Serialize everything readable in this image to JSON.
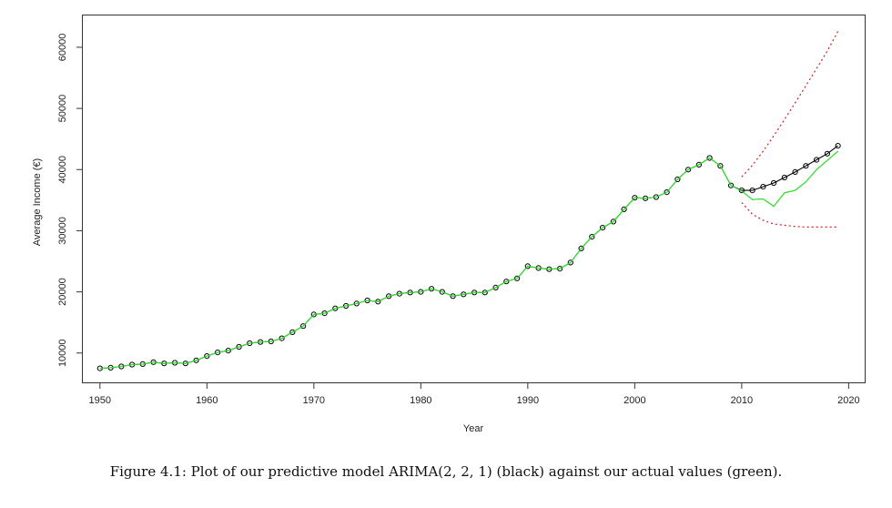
{
  "chart_data": {
    "type": "line",
    "xlabel": "Year",
    "ylabel": "Average Income (€)",
    "x_ticks": [
      1950,
      1960,
      1970,
      1980,
      1990,
      2000,
      2010,
      2020
    ],
    "y_ticks": [
      10000,
      20000,
      30000,
      40000,
      50000,
      60000
    ],
    "xlim": [
      1948.4,
      2021.5
    ],
    "ylim": [
      5200,
      65200
    ],
    "grid": false,
    "series": [
      {
        "style": "line+points",
        "color": "#000000",
        "x": [
          1950,
          1951,
          1952,
          1953,
          1954,
          1955,
          1956,
          1957,
          1958,
          1959,
          1960,
          1961,
          1962,
          1963,
          1964,
          1965,
          1966,
          1967,
          1968,
          1969,
          1970,
          1971,
          1972,
          1973,
          1974,
          1975,
          1976,
          1977,
          1978,
          1979,
          1980,
          1981,
          1982,
          1983,
          1984,
          1985,
          1986,
          1987,
          1988,
          1989,
          1990,
          1991,
          1992,
          1993,
          1994,
          1995,
          1996,
          1997,
          1998,
          1999,
          2000,
          2001,
          2002,
          2003,
          2004,
          2005,
          2006,
          2007,
          2008,
          2009,
          2010,
          2011,
          2012,
          2013,
          2014,
          2015,
          2016,
          2017,
          2018,
          2019
        ],
        "values": [
          7500,
          7600,
          7800,
          8100,
          8200,
          8500,
          8300,
          8400,
          8300,
          8800,
          9500,
          10100,
          10400,
          11000,
          11600,
          11800,
          11900,
          12400,
          13400,
          14400,
          16300,
          16500,
          17300,
          17700,
          18100,
          18600,
          18400,
          19300,
          19700,
          19900,
          20000,
          20500,
          20000,
          19300,
          19600,
          19900,
          19900,
          20700,
          21700,
          22200,
          24200,
          23900,
          23700,
          23800,
          24800,
          27100,
          29000,
          30500,
          31500,
          33500,
          35400,
          35300,
          35500,
          36300,
          38400,
          40000,
          40800,
          41900,
          40600,
          37400,
          36600,
          36600,
          37200,
          37800,
          38700,
          39600,
          40600,
          41600,
          42600,
          43900
        ]
      },
      {
        "style": "line",
        "color": "#33dd33",
        "x": [
          1950,
          1951,
          1952,
          1953,
          1954,
          1955,
          1956,
          1957,
          1958,
          1959,
          1960,
          1961,
          1962,
          1963,
          1964,
          1965,
          1966,
          1967,
          1968,
          1969,
          1970,
          1971,
          1972,
          1973,
          1974,
          1975,
          1976,
          1977,
          1978,
          1979,
          1980,
          1981,
          1982,
          1983,
          1984,
          1985,
          1986,
          1987,
          1988,
          1989,
          1990,
          1991,
          1992,
          1993,
          1994,
          1995,
          1996,
          1997,
          1998,
          1999,
          2000,
          2001,
          2002,
          2003,
          2004,
          2005,
          2006,
          2007,
          2008,
          2009,
          2010,
          2011,
          2012,
          2013,
          2014,
          2015,
          2016,
          2017,
          2018,
          2019
        ],
        "values": [
          7500,
          7600,
          7800,
          8100,
          8200,
          8500,
          8300,
          8400,
          8300,
          8800,
          9500,
          10100,
          10400,
          11000,
          11600,
          11800,
          11900,
          12400,
          13400,
          14400,
          16300,
          16500,
          17300,
          17700,
          18100,
          18600,
          18400,
          19300,
          19700,
          19900,
          20000,
          20500,
          20000,
          19300,
          19600,
          19900,
          19900,
          20700,
          21700,
          22200,
          24200,
          23900,
          23700,
          23800,
          24800,
          27100,
          29000,
          30500,
          31500,
          33500,
          35400,
          35300,
          35500,
          36300,
          38400,
          40000,
          40800,
          41900,
          40600,
          37400,
          36500,
          35100,
          35200,
          34000,
          36200,
          36600,
          38000,
          40000,
          41500,
          43000
        ]
      },
      {
        "style": "dotted",
        "color": "#cc2222",
        "x": [
          2010,
          2011,
          2012,
          2013,
          2014,
          2015,
          2016,
          2017,
          2018,
          2019
        ],
        "values": [
          38800,
          40700,
          43000,
          45500,
          48200,
          50900,
          53700,
          56500,
          59400,
          62600
        ]
      },
      {
        "style": "dotted",
        "color": "#cc2222",
        "x": [
          2010,
          2011,
          2012,
          2013,
          2014,
          2015,
          2016,
          2017,
          2018,
          2019
        ],
        "values": [
          34600,
          32700,
          31700,
          31100,
          30900,
          30700,
          30600,
          30600,
          30600,
          30600
        ]
      }
    ]
  },
  "caption": "Figure 4.1: Plot of our predictive model ARIMA(2, 2, 1) (black) against our actual values (green)."
}
